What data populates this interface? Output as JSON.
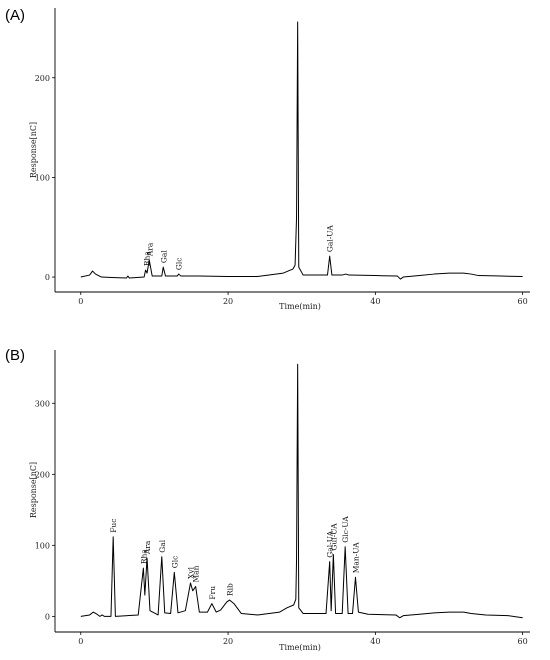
{
  "chart_data": [
    {
      "type": "line",
      "panel_label": "(A)",
      "xlabel": "Time(min)",
      "ylabel": "Response[nC]",
      "xlim": [
        -3.5,
        61
      ],
      "ylim": [
        -15,
        270
      ],
      "xticks": [
        "0",
        "20",
        "40",
        "60"
      ],
      "yticks": [
        "0",
        "100",
        "200"
      ],
      "grid": false,
      "peaks": [
        {
          "label": "Rha",
          "x": 8.9,
          "y": 7
        },
        {
          "label": "Ara",
          "x": 9.3,
          "y": 17
        },
        {
          "label": "Gal",
          "x": 11.2,
          "y": 10
        },
        {
          "label": "Glc",
          "x": 13.3,
          "y": 3
        },
        {
          "label": "Gal-UA",
          "x": 33.8,
          "y": 21
        }
      ],
      "baseline": [
        [
          0,
          0
        ],
        [
          1.2,
          2
        ],
        [
          1.6,
          6
        ],
        [
          2.0,
          3
        ],
        [
          2.8,
          0
        ],
        [
          4.2,
          -0.5
        ],
        [
          6.2,
          -1
        ],
        [
          6.4,
          1
        ],
        [
          6.6,
          -1
        ],
        [
          8.6,
          0
        ],
        [
          8.8,
          7
        ],
        [
          9.0,
          4
        ],
        [
          9.3,
          17
        ],
        [
          9.7,
          1
        ],
        [
          11.0,
          1
        ],
        [
          11.2,
          10
        ],
        [
          11.5,
          1
        ],
        [
          13.1,
          1
        ],
        [
          13.3,
          3
        ],
        [
          13.6,
          1
        ],
        [
          16.0,
          1
        ],
        [
          20,
          0.5
        ],
        [
          24,
          0.5
        ],
        [
          27.5,
          4
        ],
        [
          28.8,
          8
        ],
        [
          29.1,
          12
        ],
        [
          29.3,
          60
        ],
        [
          29.45,
          256
        ],
        [
          29.6,
          10
        ],
        [
          30.2,
          2
        ],
        [
          33.5,
          2
        ],
        [
          33.8,
          21
        ],
        [
          34.1,
          2
        ],
        [
          35.5,
          2
        ],
        [
          36.0,
          3
        ],
        [
          36.4,
          2
        ],
        [
          40,
          1.5
        ],
        [
          43.0,
          1
        ],
        [
          43.4,
          -2
        ],
        [
          43.8,
          0
        ],
        [
          46,
          1.5
        ],
        [
          48,
          3
        ],
        [
          50,
          4
        ],
        [
          52,
          4
        ],
        [
          53,
          3
        ],
        [
          54,
          1.5
        ],
        [
          57,
          1
        ],
        [
          60,
          0.5
        ]
      ]
    },
    {
      "type": "line",
      "panel_label": "(B)",
      "xlabel": "Time(min)",
      "ylabel": "Response[nC]",
      "xlim": [
        -3.5,
        61
      ],
      "ylim": [
        -22,
        375
      ],
      "xticks": [
        "0",
        "20",
        "40",
        "60"
      ],
      "yticks": [
        "0",
        "100",
        "200",
        "300"
      ],
      "grid": false,
      "peaks": [
        {
          "label": "Fuc",
          "x": 4.4,
          "y": 112
        },
        {
          "label": "Rha",
          "x": 8.5,
          "y": 68
        },
        {
          "label": "Ara",
          "x": 9.0,
          "y": 82
        },
        {
          "label": "Gal",
          "x": 11.0,
          "y": 84
        },
        {
          "label": "Glc",
          "x": 12.7,
          "y": 62
        },
        {
          "label": "Xyl",
          "x": 14.9,
          "y": 47
        },
        {
          "label": "Man",
          "x": 15.6,
          "y": 42
        },
        {
          "label": "Fru",
          "x": 17.8,
          "y": 18
        },
        {
          "label": "Rib",
          "x": 20.2,
          "y": 23
        },
        {
          "label": "Gal-UA",
          "x": 33.8,
          "y": 77
        },
        {
          "label": "Gul-UA",
          "x": 34.3,
          "y": 87
        },
        {
          "label": "Glc-UA",
          "x": 35.9,
          "y": 98
        },
        {
          "label": "Man-UA",
          "x": 37.3,
          "y": 55
        }
      ],
      "baseline": [
        [
          0,
          0
        ],
        [
          1.2,
          2
        ],
        [
          1.7,
          6
        ],
        [
          2.2,
          3
        ],
        [
          2.6,
          0
        ],
        [
          2.9,
          2
        ],
        [
          3.2,
          0
        ],
        [
          4.1,
          0
        ],
        [
          4.4,
          112
        ],
        [
          4.7,
          0
        ],
        [
          7.8,
          2
        ],
        [
          8.5,
          68
        ],
        [
          8.7,
          30
        ],
        [
          9.0,
          82
        ],
        [
          9.4,
          8
        ],
        [
          10.5,
          2
        ],
        [
          11.0,
          84
        ],
        [
          11.4,
          5
        ],
        [
          12.2,
          4
        ],
        [
          12.7,
          62
        ],
        [
          13.2,
          5
        ],
        [
          14.2,
          8
        ],
        [
          14.9,
          47
        ],
        [
          15.2,
          36
        ],
        [
          15.6,
          42
        ],
        [
          16.1,
          6
        ],
        [
          17.2,
          6
        ],
        [
          17.8,
          18
        ],
        [
          18.4,
          6
        ],
        [
          19.0,
          9
        ],
        [
          19.8,
          20
        ],
        [
          20.2,
          23
        ],
        [
          20.8,
          18
        ],
        [
          21.8,
          4
        ],
        [
          24,
          2
        ],
        [
          27,
          6
        ],
        [
          28,
          12
        ],
        [
          28.9,
          16
        ],
        [
          29.2,
          24
        ],
        [
          29.3,
          80
        ],
        [
          29.45,
          355
        ],
        [
          29.6,
          12
        ],
        [
          30.2,
          4
        ],
        [
          33.3,
          4
        ],
        [
          33.8,
          77
        ],
        [
          34.0,
          8
        ],
        [
          34.3,
          87
        ],
        [
          34.6,
          4
        ],
        [
          35.5,
          4
        ],
        [
          35.9,
          98
        ],
        [
          36.3,
          4
        ],
        [
          36.9,
          4
        ],
        [
          37.3,
          55
        ],
        [
          37.7,
          6
        ],
        [
          39,
          3
        ],
        [
          42.8,
          2
        ],
        [
          43.3,
          -2
        ],
        [
          43.8,
          1
        ],
        [
          46,
          3
        ],
        [
          48,
          5
        ],
        [
          50,
          6
        ],
        [
          52,
          6
        ],
        [
          53,
          4
        ],
        [
          55,
          2
        ],
        [
          58,
          1
        ],
        [
          60,
          -2
        ]
      ]
    }
  ]
}
